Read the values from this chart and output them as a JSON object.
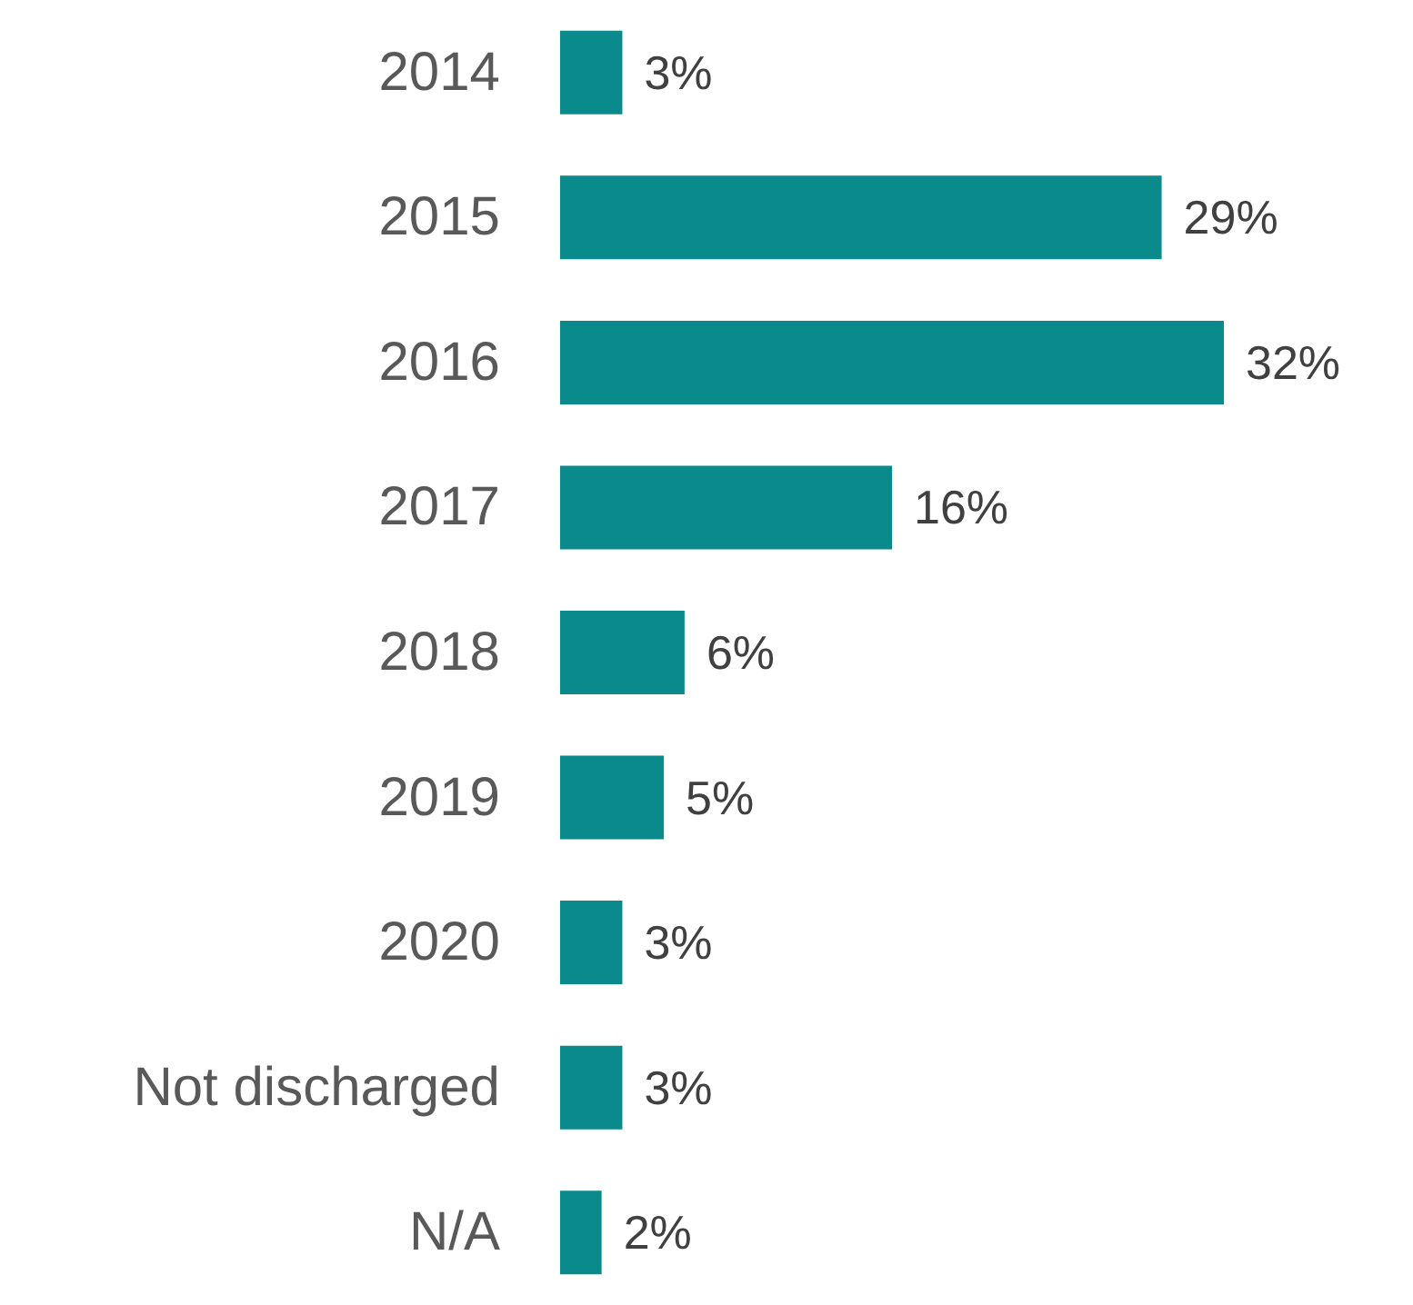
{
  "chart_data": {
    "type": "bar",
    "orientation": "horizontal",
    "categories": [
      "2014",
      "2015",
      "2016",
      "2017",
      "2018",
      "2019",
      "2020",
      "Not discharged",
      "N/A"
    ],
    "values": [
      3,
      29,
      32,
      16,
      6,
      5,
      3,
      3,
      2
    ],
    "color": "#0a8a8a",
    "value_labels": [
      "3%",
      "29%",
      "32%",
      "16%",
      "6%",
      "5%",
      "3%",
      "3%",
      "2%"
    ]
  }
}
